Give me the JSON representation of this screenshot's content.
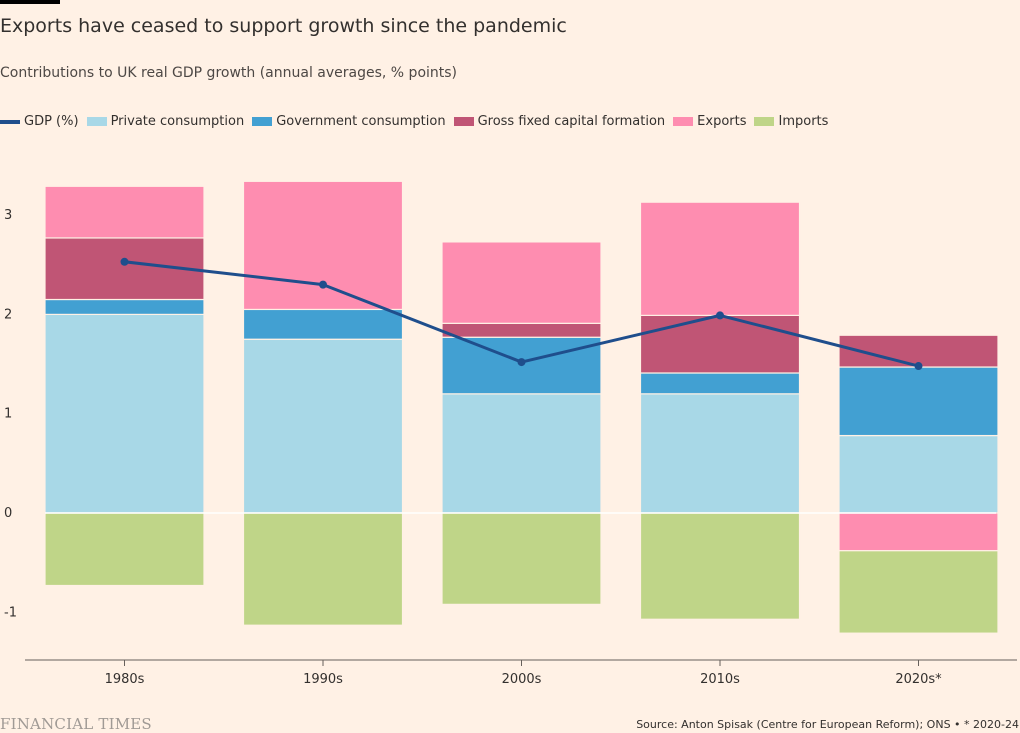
{
  "title": "Exports have ceased to support growth since the pandemic",
  "subtitle": "Contributions to UK real GDP growth (annual averages, % points)",
  "footer": {
    "logo": "FINANCIAL TIMES",
    "source": "Source: Anton Spisak (Centre for European Reform); ONS • * 2020-24"
  },
  "legend": [
    {
      "label": "GDP (%)",
      "color": "#1f4e8c",
      "kind": "line"
    },
    {
      "label": "Private consumption",
      "color": "#a8d8e7",
      "kind": "bar"
    },
    {
      "label": "Government consumption",
      "color": "#42a0d2",
      "kind": "bar"
    },
    {
      "label": "Gross fixed capital formation",
      "color": "#c05575",
      "kind": "bar"
    },
    {
      "label": "Exports",
      "color": "#fe8db0",
      "kind": "bar"
    },
    {
      "label": "Imports",
      "color": "#bfd588",
      "kind": "bar"
    }
  ],
  "chart_data": {
    "type": "bar",
    "stacked": true,
    "title": "Exports have ceased to support growth since the pandemic",
    "subtitle": "Contributions to UK real GDP growth (annual averages, % points)",
    "categories": [
      "1980s",
      "1990s",
      "2000s",
      "2010s",
      "2020s*"
    ],
    "ylim": [
      -1.5,
      3.5
    ],
    "yticks": [
      -1,
      0,
      1,
      2,
      3
    ],
    "ytick_labels": [
      "-1",
      "0",
      "1",
      "2",
      "3"
    ],
    "series": [
      {
        "name": "Private consumption",
        "color": "#a8d8e7",
        "values": [
          2.0,
          1.75,
          1.2,
          1.2,
          0.78
        ]
      },
      {
        "name": "Government consumption",
        "color": "#42a0d2",
        "values": [
          0.15,
          0.3,
          0.57,
          0.21,
          0.69
        ]
      },
      {
        "name": "Gross fixed capital formation",
        "color": "#c05575",
        "values": [
          0.62,
          0.0,
          0.14,
          0.58,
          0.32
        ]
      },
      {
        "name": "Exports",
        "color": "#fe8db0",
        "values": [
          0.52,
          1.29,
          0.82,
          1.14,
          -0.38
        ]
      },
      {
        "name": "Imports",
        "color": "#bfd588",
        "values": [
          -0.73,
          -1.13,
          -0.92,
          -1.07,
          -0.83
        ]
      }
    ],
    "line": {
      "name": "GDP (%)",
      "color": "#1f4e8c",
      "values": [
        2.53,
        2.3,
        1.52,
        1.99,
        1.48
      ]
    },
    "grid": false,
    "legend_position": "top-left"
  }
}
